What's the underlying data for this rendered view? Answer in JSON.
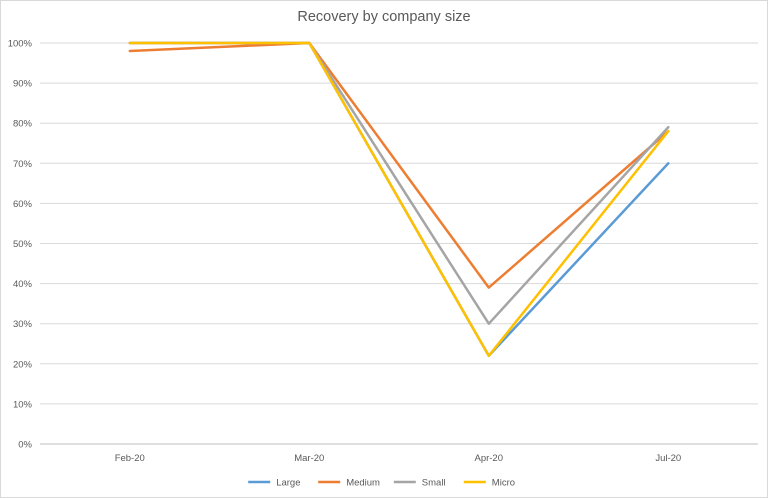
{
  "chart_data": {
    "type": "line",
    "title": "Recovery by company size",
    "xlabel": "",
    "ylabel": "",
    "categories": [
      "Feb-20",
      "Mar-20",
      "Apr-20",
      "Jul-20"
    ],
    "ylim": [
      0,
      100
    ],
    "yticks": [
      0,
      10,
      20,
      30,
      40,
      50,
      60,
      70,
      80,
      90,
      100
    ],
    "ytick_labels": [
      "0%",
      "10%",
      "20%",
      "30%",
      "40%",
      "50%",
      "60%",
      "70%",
      "80%",
      "90%",
      "100%"
    ],
    "grid": true,
    "legend_position": "bottom",
    "series": [
      {
        "name": "Large",
        "color": "#5b9bd5",
        "values": [
          100,
          100,
          22,
          70
        ]
      },
      {
        "name": "Medium",
        "color": "#ed7d31",
        "values": [
          98,
          100,
          39,
          78
        ]
      },
      {
        "name": "Small",
        "color": "#a5a5a5",
        "values": [
          100,
          100,
          30,
          79
        ]
      },
      {
        "name": "Micro",
        "color": "#ffc000",
        "values": [
          100,
          100,
          22,
          78
        ]
      }
    ]
  }
}
